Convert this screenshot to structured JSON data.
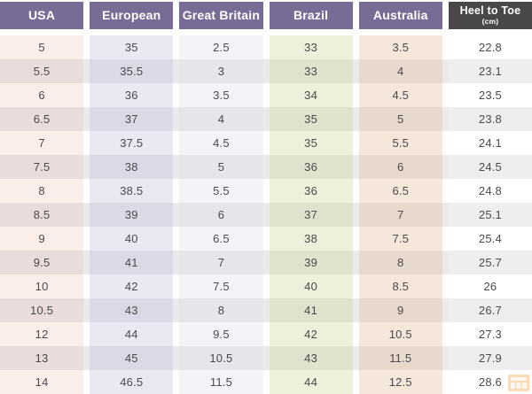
{
  "page": {
    "background": "#ffffff",
    "text_color": "#4c494c"
  },
  "table": {
    "alt_row_overlay": "#eaeaea",
    "columns": [
      {
        "id": "usa",
        "header": "USA",
        "header_bg": "#786c96",
        "header_fg": "#ffffff",
        "odd_bg": "#fbeee9",
        "even_bg": "#e9dcda"
      },
      {
        "id": "european",
        "header": "European",
        "header_bg": "#786c96",
        "header_fg": "#ffffff",
        "odd_bg": "#e9e9f4",
        "even_bg": "#dadae7"
      },
      {
        "id": "great-britain",
        "header": "Great Britain",
        "header_bg": "#786c96",
        "header_fg": "#ffffff",
        "odd_bg": "#f4f4f8",
        "even_bg": "#e5e5ea"
      },
      {
        "id": "brazil",
        "header": "Brazil",
        "header_bg": "#786c96",
        "header_fg": "#ffffff",
        "odd_bg": "#eff0db",
        "even_bg": "#e1e2cd"
      },
      {
        "id": "australia",
        "header": "Australia",
        "header_bg": "#786c96",
        "header_fg": "#ffffff",
        "odd_bg": "#f5e7da",
        "even_bg": "#e7d9cc"
      },
      {
        "id": "heel-to-toe",
        "header": "Heel to Toe",
        "sub_header": "(cm)",
        "header_bg": "#4a474a",
        "header_fg": "#ffffff",
        "odd_bg": "#ffffff",
        "even_bg": "#eeeef0"
      }
    ]
  },
  "watermark": {
    "icon": "grid-logo",
    "color": "#f0a04a",
    "inner_color": "#ffe9cf"
  },
  "chart_data": {
    "type": "table",
    "columns": [
      "USA",
      "European",
      "Great Britain",
      "Brazil",
      "Australia",
      "Heel to Toe (cm)"
    ],
    "rows": [
      [
        "5",
        "35",
        "2.5",
        "33",
        "3.5",
        "22.8"
      ],
      [
        "5.5",
        "35.5",
        "3",
        "33",
        "4",
        "23.1"
      ],
      [
        "6",
        "36",
        "3.5",
        "34",
        "4.5",
        "23.5"
      ],
      [
        "6.5",
        "37",
        "4",
        "35",
        "5",
        "23.8"
      ],
      [
        "7",
        "37.5",
        "4.5",
        "35",
        "5.5",
        "24.1"
      ],
      [
        "7.5",
        "38",
        "5",
        "36",
        "6",
        "24.5"
      ],
      [
        "8",
        "38.5",
        "5.5",
        "36",
        "6.5",
        "24.8"
      ],
      [
        "8.5",
        "39",
        "6",
        "37",
        "7",
        "25.1"
      ],
      [
        "9",
        "40",
        "6.5",
        "38",
        "7.5",
        "25.4"
      ],
      [
        "9.5",
        "41",
        "7",
        "39",
        "8",
        "25.7"
      ],
      [
        "10",
        "42",
        "7.5",
        "40",
        "8.5",
        "26"
      ],
      [
        "10.5",
        "43",
        "8",
        "41",
        "9",
        "26.7"
      ],
      [
        "12",
        "44",
        "9.5",
        "42",
        "10.5",
        "27.3"
      ],
      [
        "13",
        "45",
        "10.5",
        "43",
        "11.5",
        "27.9"
      ],
      [
        "14",
        "46.5",
        "11.5",
        "44",
        "12.5",
        "28.6"
      ]
    ]
  }
}
